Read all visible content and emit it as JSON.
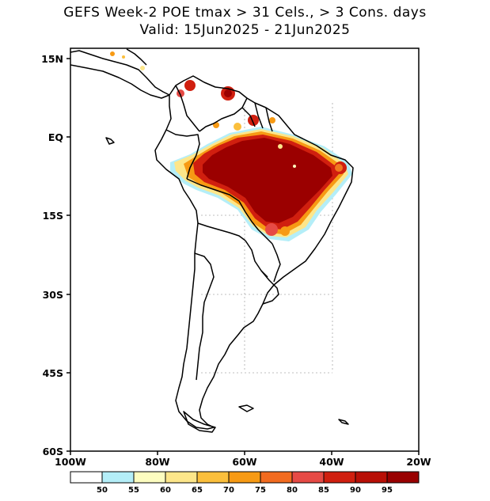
{
  "header": {
    "title_line1": "GEFS Week-2 POE tmax > 31 Cels., > 3 Cons. days",
    "title_line2": "Valid: 15Jun2025 - 21Jun2025"
  },
  "axes": {
    "lat_labels": [
      "15N",
      "EQ",
      "15S",
      "30S",
      "45S",
      "60S"
    ],
    "lon_labels": [
      "100W",
      "80W",
      "60W",
      "40W",
      "20W"
    ]
  },
  "legend": {
    "labels": [
      "50",
      "55",
      "60",
      "65",
      "70",
      "75",
      "80",
      "85",
      "90",
      "95"
    ],
    "colors": [
      "#ffffff",
      "#b4eef8",
      "#fdfdc0",
      "#fde68a",
      "#fbbf3c",
      "#f79a14",
      "#f26b1f",
      "#e64a45",
      "#d01f0f",
      "#b80f06",
      "#990000"
    ]
  },
  "colors": {
    "prob_dark": "#9b0000",
    "prob_red": "#c8140a",
    "prob_orange": "#f07820",
    "prob_yellow": "#fde68a",
    "prob_cyan": "#b4eef8",
    "coast": "#000000"
  }
}
